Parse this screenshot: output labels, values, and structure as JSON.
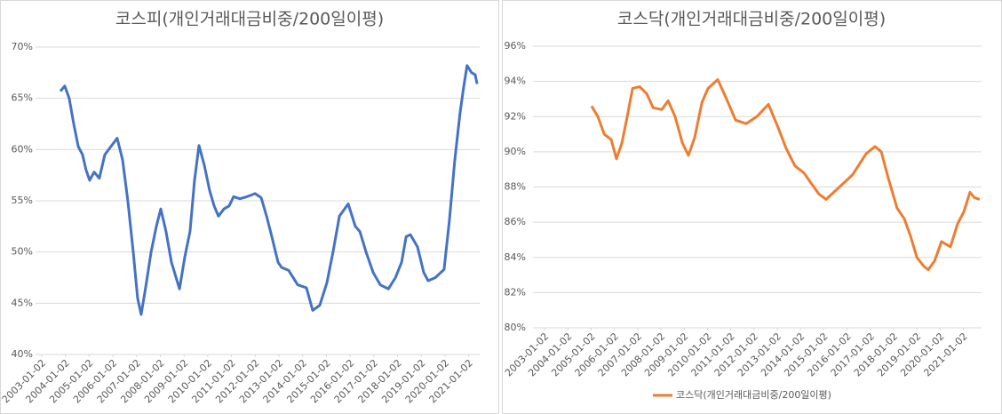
{
  "chart_data": [
    {
      "type": "line",
      "title": "코스피(개인거래대금비중/200일이평)",
      "x": [
        2003.79,
        2003.97,
        2004.16,
        2004.35,
        2004.54,
        2004.72,
        2004.87,
        2005.02,
        2005.21,
        2005.43,
        2005.66,
        2005.92,
        2006.18,
        2006.41,
        2006.63,
        2006.86,
        2007.04,
        2007.19,
        2007.38,
        2007.61,
        2007.83,
        2008.02,
        2008.24,
        2008.47,
        2008.81,
        2009.03,
        2009.25,
        2009.44,
        2009.63,
        2009.85,
        2010.08,
        2010.27,
        2010.45,
        2010.68,
        2010.9,
        2011.09,
        2011.35,
        2011.65,
        2011.99,
        2012.25,
        2012.48,
        2012.7,
        2012.96,
        2013.11,
        2013.41,
        2013.79,
        2014.16,
        2014.42,
        2014.72,
        2015.02,
        2015.28,
        2015.55,
        2015.92,
        2016.22,
        2016.41,
        2016.67,
        2016.97,
        2017.27,
        2017.61,
        2017.91,
        2018.17,
        2018.36,
        2018.54,
        2018.84,
        2019.1,
        2019.29,
        2019.59,
        2019.96,
        2020.18,
        2020.41,
        2020.63,
        2020.78,
        2020.93,
        2021.12,
        2021.27,
        2021.35
      ],
      "series": [
        {
          "color": "#4472c4",
          "values": [
            65.7,
            66.2,
            65,
            62.5,
            60.3,
            59.5,
            58,
            57,
            57.8,
            57.2,
            59.5,
            60.3,
            61.1,
            59,
            55,
            50,
            45.5,
            43.9,
            46.5,
            50,
            52.5,
            54.2,
            52,
            49,
            46.4,
            49.5,
            52,
            57,
            60.4,
            58.5,
            56,
            54.5,
            53.5,
            54.2,
            54.5,
            55.4,
            55.2,
            55.4,
            55.7,
            55.3,
            53.5,
            51.5,
            49,
            48.5,
            48.2,
            46.8,
            46.5,
            44.3,
            44.8,
            47,
            50,
            53.5,
            54.7,
            52.5,
            52,
            50,
            48,
            46.8,
            46.4,
            47.5,
            49,
            51.5,
            51.7,
            50.5,
            48,
            47.2,
            47.5,
            48.3,
            53,
            59,
            63.5,
            66,
            68.2,
            67.5,
            67.3,
            66.4
          ]
        }
      ],
      "xlim": [
        2002.74,
        2021.46
      ],
      "xticks": [
        {
          "value": 2003,
          "label": "2003-01-02"
        },
        {
          "value": 2004,
          "label": "2004-01-02"
        },
        {
          "value": 2005,
          "label": "2005-01-02"
        },
        {
          "value": 2006,
          "label": "2006-01-02"
        },
        {
          "value": 2007,
          "label": "2007-01-02"
        },
        {
          "value": 2008,
          "label": "2008-01-02"
        },
        {
          "value": 2009,
          "label": "2009-01-02"
        },
        {
          "value": 2010,
          "label": "2010-01-02"
        },
        {
          "value": 2011,
          "label": "2011-01-02"
        },
        {
          "value": 2012,
          "label": "2012-01-02"
        },
        {
          "value": 2013,
          "label": "2013-01-02"
        },
        {
          "value": 2014,
          "label": "2014-01-02"
        },
        {
          "value": 2015,
          "label": "2015-01-02"
        },
        {
          "value": 2016,
          "label": "2016-01-02"
        },
        {
          "value": 2017,
          "label": "2017-01-02"
        },
        {
          "value": 2018,
          "label": "2018-01-02"
        },
        {
          "value": 2019,
          "label": "2019-01-02"
        },
        {
          "value": 2020,
          "label": "2020-01-02"
        },
        {
          "value": 2021,
          "label": "2021-01-02"
        }
      ],
      "ylim": [
        40,
        70
      ],
      "yticks": [
        {
          "value": 40,
          "label": "40%"
        },
        {
          "value": 45,
          "label": "45%"
        },
        {
          "value": 50,
          "label": "50%"
        },
        {
          "value": 55,
          "label": "55%"
        },
        {
          "value": 60,
          "label": "60%"
        },
        {
          "value": 65,
          "label": "65%"
        },
        {
          "value": 70,
          "label": "70%"
        }
      ],
      "grid": true
    },
    {
      "type": "line",
      "title": "코스닥(개인거래대금비중/200일이평)",
      "x": [
        2005.02,
        2005.29,
        2005.56,
        2005.86,
        2006.09,
        2006.32,
        2006.55,
        2006.78,
        2007.08,
        2007.39,
        2007.66,
        2008.04,
        2008.31,
        2008.61,
        2008.92,
        2009.18,
        2009.45,
        2009.76,
        2010.02,
        2010.44,
        2010.82,
        2011.21,
        2011.66,
        2012.12,
        2012.62,
        2013.0,
        2013.38,
        2013.76,
        2014.15,
        2014.41,
        2014.79,
        2015.1,
        2015.67,
        2016.24,
        2016.82,
        2017.2,
        2017.47,
        2017.77,
        2018.15,
        2018.46,
        2018.73,
        2019.0,
        2019.3,
        2019.49,
        2019.76,
        2020.06,
        2020.44,
        2020.75,
        2021.02,
        2021.28,
        2021.47,
        2021.7
      ],
      "series": [
        {
          "name": "코스닥(개인거래대금비중/200일이평)",
          "color": "#ed7d31",
          "values": [
            92.6,
            92.0,
            91.0,
            90.7,
            89.6,
            90.5,
            92.0,
            93.6,
            93.7,
            93.3,
            92.5,
            92.4,
            92.9,
            92.0,
            90.5,
            89.8,
            90.8,
            92.8,
            93.6,
            94.1,
            93.0,
            91.8,
            91.6,
            92.0,
            92.7,
            91.5,
            90.2,
            89.2,
            88.8,
            88.3,
            87.6,
            87.3,
            88.0,
            88.7,
            89.9,
            90.3,
            90.0,
            88.5,
            86.8,
            86.2,
            85.2,
            84.0,
            83.5,
            83.3,
            83.8,
            84.9,
            84.6,
            85.9,
            86.6,
            87.7,
            87.4,
            87.3
          ]
        }
      ],
      "xlim": [
        2002.5,
        2021.78
      ],
      "xticks": [
        {
          "value": 2003,
          "label": "2003-01-02"
        },
        {
          "value": 2004,
          "label": "2004-01-02"
        },
        {
          "value": 2005,
          "label": "2005-01-02"
        },
        {
          "value": 2006,
          "label": "2006-01-02"
        },
        {
          "value": 2007,
          "label": "2007-01-02"
        },
        {
          "value": 2008,
          "label": "2008-01-02"
        },
        {
          "value": 2009,
          "label": "2009-01-02"
        },
        {
          "value": 2010,
          "label": "2010-01-02"
        },
        {
          "value": 2011,
          "label": "2011-01-02"
        },
        {
          "value": 2012,
          "label": "2012-01-02"
        },
        {
          "value": 2013,
          "label": "2013-01-02"
        },
        {
          "value": 2014,
          "label": "2014-01-02"
        },
        {
          "value": 2015,
          "label": "2015-01-02"
        },
        {
          "value": 2016,
          "label": "2016-01-02"
        },
        {
          "value": 2017,
          "label": "2017-01-02"
        },
        {
          "value": 2018,
          "label": "2018-01-02"
        },
        {
          "value": 2019,
          "label": "2019-01-02"
        },
        {
          "value": 2020,
          "label": "2020-01-02"
        },
        {
          "value": 2021,
          "label": "2021-01-02"
        }
      ],
      "ylim": [
        80,
        96
      ],
      "yticks": [
        {
          "value": 80,
          "label": "80%"
        },
        {
          "value": 82,
          "label": "82%"
        },
        {
          "value": 84,
          "label": "84%"
        },
        {
          "value": 86,
          "label": "86%"
        },
        {
          "value": 88,
          "label": "88%"
        },
        {
          "value": 90,
          "label": "90%"
        },
        {
          "value": 92,
          "label": "92%"
        },
        {
          "value": 94,
          "label": "94%"
        },
        {
          "value": 96,
          "label": "96%"
        }
      ],
      "grid": true,
      "legend": "bottom"
    }
  ]
}
